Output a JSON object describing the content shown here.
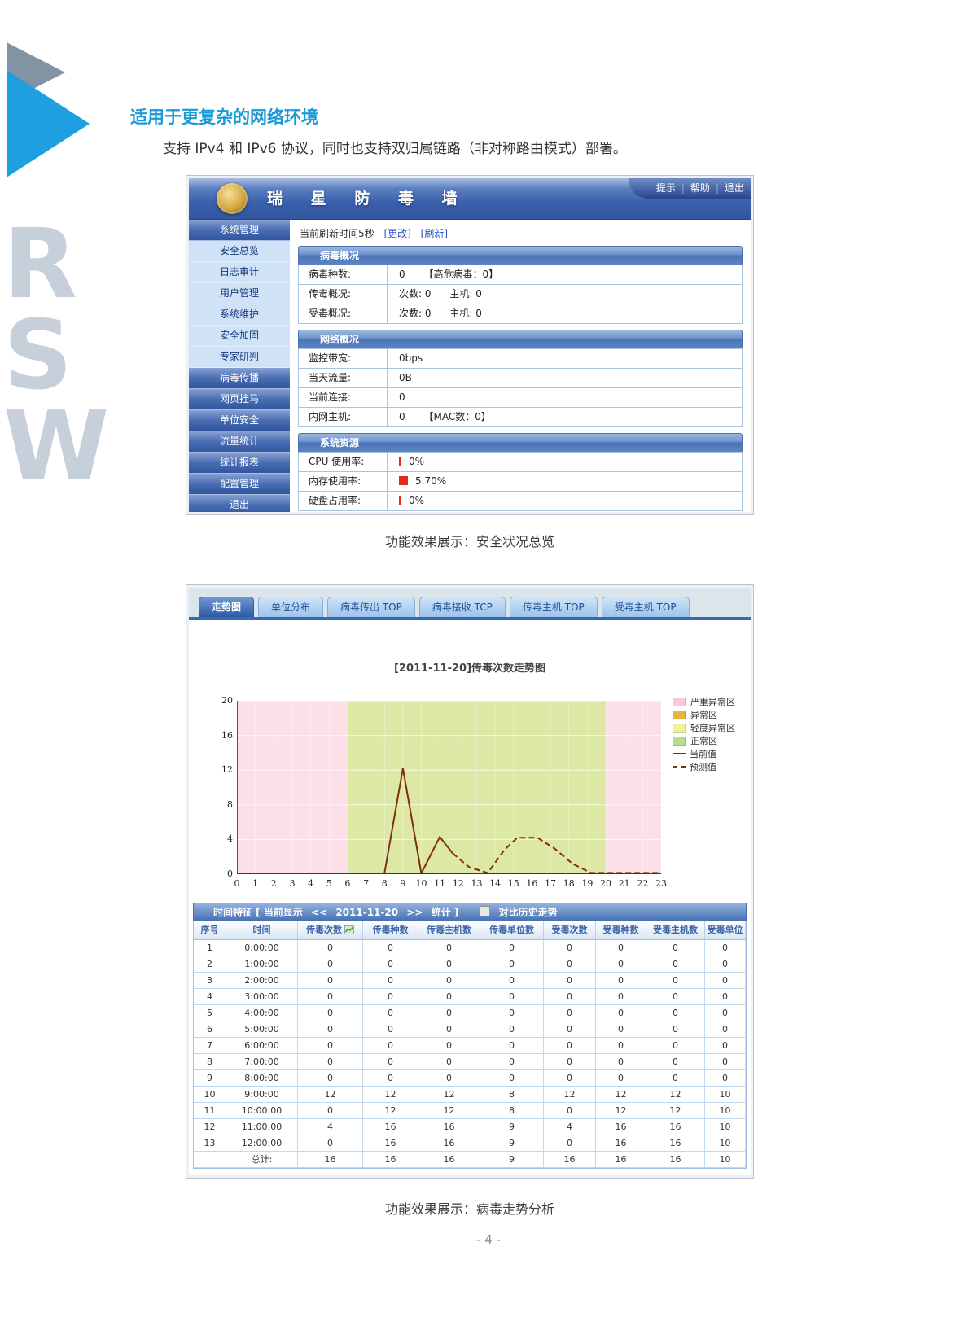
{
  "page": {
    "heading": "适用于更复杂的网络环境",
    "intro": "支持 IPv4 和 IPv6 协议，同时也支持双归属链路（非对称路由模式）部署。",
    "watermark": "RSW",
    "caption_overview": "功能效果展示：安全状况总览",
    "caption_trend": "功能效果展示：病毒走势分析",
    "page_number": "- 4 -"
  },
  "antivirus_wall": {
    "title": "瑞 星 防 毒 墙",
    "separator": "|",
    "header_links": [
      {
        "label": "提示"
      },
      {
        "label": "帮助"
      },
      {
        "label": "退出"
      }
    ],
    "refresh": {
      "text": "当前刷新时间5秒",
      "change_link": "[更改]",
      "refresh_link": "[刷新]"
    },
    "sidebar": [
      {
        "label": "系统管理",
        "style": "dark"
      },
      {
        "label": "安全总览",
        "style": "light"
      },
      {
        "label": "日志审计",
        "style": "light"
      },
      {
        "label": "用户管理",
        "style": "light"
      },
      {
        "label": "系统维护",
        "style": "light"
      },
      {
        "label": "安全加固",
        "style": "light"
      },
      {
        "label": "专家研判",
        "style": "light"
      },
      {
        "label": "病毒传播",
        "style": "dark"
      },
      {
        "label": "网页挂马",
        "style": "dark"
      },
      {
        "label": "单位安全",
        "style": "dark"
      },
      {
        "label": "流量统计",
        "style": "dark"
      },
      {
        "label": "统计报表",
        "style": "dark"
      },
      {
        "label": "配置管理",
        "style": "dark"
      },
      {
        "label": "退出",
        "style": "dark"
      }
    ],
    "sections": [
      {
        "title": "病毒概况",
        "rows": [
          {
            "label": "病毒种数:",
            "value": "0      【高危病毒：0】"
          },
          {
            "label": "传毒概况:",
            "value": "次数: 0      主机: 0"
          },
          {
            "label": "受毒概况:",
            "value": "次数: 0      主机: 0"
          }
        ]
      },
      {
        "title": "网络概况",
        "rows": [
          {
            "label": "监控带宽:",
            "value": "0bps"
          },
          {
            "label": "当天流量:",
            "value": "0B"
          },
          {
            "label": "当前连接:",
            "value": "0"
          },
          {
            "label": "内网主机:",
            "value": "0      【MAC数：0】"
          }
        ]
      },
      {
        "title": "系统资源",
        "rows": [
          {
            "label": "CPU 使用率:",
            "value": "0%",
            "usage_percent": 0.5
          },
          {
            "label": "内存使用率:",
            "value": "5.70%",
            "usage_percent": 5.7
          },
          {
            "label": "硬盘占用率:",
            "value": "0%",
            "usage_percent": 0.5
          }
        ]
      }
    ]
  },
  "trend_module": {
    "tabs": [
      {
        "label": "走势图",
        "active": true
      },
      {
        "label": "单位分布",
        "active": false
      },
      {
        "label": "病毒传出 TOP",
        "active": false
      },
      {
        "label": "病毒接收 TCP",
        "active": false
      },
      {
        "label": "传毒主机 TOP",
        "active": false
      },
      {
        "label": "受毒主机 TOP",
        "active": false
      }
    ],
    "time_bar": {
      "prefix": "时间特征 [ 当前显示",
      "prev": "<<",
      "date": "2011-11-20",
      "next": ">>",
      "suffix": "统计 ]",
      "compare_label": "对比历史走势"
    },
    "table": {
      "headers": [
        "序号",
        "时间",
        "传毒次数",
        "传毒种数",
        "传毒主机数",
        "传毒单位数",
        "受毒次数",
        "受毒种数",
        "受毒主机数",
        "受毒单位数"
      ],
      "sortable_column": "传毒次数",
      "rows": [
        [
          "1",
          "0:00:00",
          "0",
          "0",
          "0",
          "0",
          "0",
          "0",
          "0",
          "0"
        ],
        [
          "2",
          "1:00:00",
          "0",
          "0",
          "0",
          "0",
          "0",
          "0",
          "0",
          "0"
        ],
        [
          "3",
          "2:00:00",
          "0",
          "0",
          "0",
          "0",
          "0",
          "0",
          "0",
          "0"
        ],
        [
          "4",
          "3:00:00",
          "0",
          "0",
          "0",
          "0",
          "0",
          "0",
          "0",
          "0"
        ],
        [
          "5",
          "4:00:00",
          "0",
          "0",
          "0",
          "0",
          "0",
          "0",
          "0",
          "0"
        ],
        [
          "6",
          "5:00:00",
          "0",
          "0",
          "0",
          "0",
          "0",
          "0",
          "0",
          "0"
        ],
        [
          "7",
          "6:00:00",
          "0",
          "0",
          "0",
          "0",
          "0",
          "0",
          "0",
          "0"
        ],
        [
          "8",
          "7:00:00",
          "0",
          "0",
          "0",
          "0",
          "0",
          "0",
          "0",
          "0"
        ],
        [
          "9",
          "8:00:00",
          "0",
          "0",
          "0",
          "0",
          "0",
          "0",
          "0",
          "0"
        ],
        [
          "10",
          "9:00:00",
          "12",
          "12",
          "12",
          "8",
          "12",
          "12",
          "12",
          "10"
        ],
        [
          "11",
          "10:00:00",
          "0",
          "12",
          "12",
          "8",
          "0",
          "12",
          "12",
          "10"
        ],
        [
          "12",
          "11:00:00",
          "4",
          "16",
          "16",
          "9",
          "4",
          "16",
          "16",
          "10"
        ],
        [
          "13",
          "12:00:00",
          "0",
          "16",
          "16",
          "9",
          "0",
          "16",
          "16",
          "10"
        ]
      ],
      "total_label": "总计:",
      "total": [
        "16",
        "16",
        "16",
        "9",
        "16",
        "16",
        "16",
        "10"
      ]
    }
  },
  "chart_data": {
    "type": "line",
    "title": "[2011-11-20]传毒次数走势图",
    "xlabel": "",
    "ylabel": "",
    "xlim": [
      0,
      23
    ],
    "ylim": [
      0,
      20
    ],
    "yticks": [
      0,
      4,
      8,
      12,
      16,
      20
    ],
    "xticks": [
      "0",
      "1",
      "2",
      "3",
      "4",
      "5",
      "6",
      "7",
      "8",
      "9",
      "10",
      "11",
      "12",
      "13",
      "14",
      "15",
      "16",
      "17",
      "18",
      "19",
      "20",
      "21",
      "22",
      "23"
    ],
    "grid": true,
    "legend_position": "right",
    "line_color": "#7d3009",
    "zones": [
      {
        "range": [
          0,
          6
        ],
        "color": "#fbe1e7",
        "label": "严重异常区"
      },
      {
        "range": [
          6,
          20
        ],
        "color": "#dce8a4",
        "label": "正常区"
      },
      {
        "range": [
          20,
          23
        ],
        "color": "#fbe1e7",
        "label": "严重异常区"
      }
    ],
    "series": [
      {
        "name": "当前值",
        "style": "solid",
        "points": [
          [
            0,
            0
          ],
          [
            1,
            0
          ],
          [
            2,
            0
          ],
          [
            3,
            0
          ],
          [
            4,
            0
          ],
          [
            5,
            0
          ],
          [
            6,
            0
          ],
          [
            7,
            0
          ],
          [
            8,
            0
          ],
          [
            9,
            12.2
          ],
          [
            10,
            0
          ],
          [
            11,
            4.3
          ],
          [
            11.7,
            2.4
          ]
        ]
      },
      {
        "name": "预测值",
        "style": "dashed",
        "points": [
          [
            11.7,
            2.4
          ],
          [
            12.6,
            0.8
          ],
          [
            13.6,
            0.15
          ],
          [
            14.5,
            2.8
          ],
          [
            15.2,
            4.2
          ],
          [
            16.3,
            4.2
          ],
          [
            17.2,
            3.0
          ],
          [
            18.2,
            1.2
          ],
          [
            19.2,
            0.15
          ],
          [
            23,
            0.15
          ]
        ]
      }
    ],
    "legend": [
      {
        "label": "严重异常区",
        "swatch": "#f7ccd6"
      },
      {
        "label": "异常区",
        "swatch": "#e9b63d"
      },
      {
        "label": "轻度异常区",
        "swatch": "#eff29a"
      },
      {
        "label": "正常区",
        "swatch": "#b8dc8c"
      },
      {
        "label": "当前值",
        "line": "solid"
      },
      {
        "label": "预测值",
        "line": "dashed"
      }
    ]
  }
}
